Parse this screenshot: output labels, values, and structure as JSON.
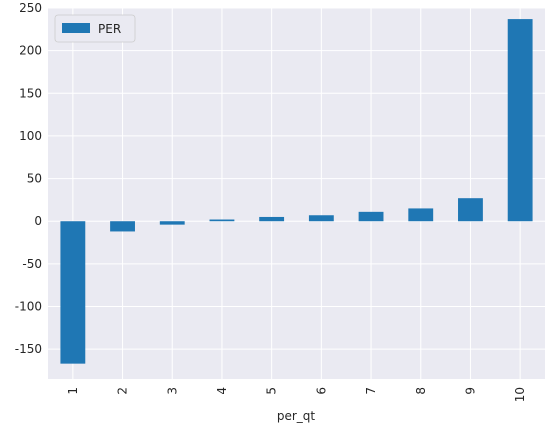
{
  "chart_data": {
    "type": "bar",
    "categories": [
      "1",
      "2",
      "3",
      "4",
      "5",
      "6",
      "7",
      "8",
      "9",
      "10"
    ],
    "series": [
      {
        "name": "PER",
        "values": [
          -167,
          -12,
          -4,
          2,
          5,
          7,
          11,
          15,
          27,
          237
        ]
      }
    ],
    "xlabel": "per_qt",
    "ylabel": "",
    "ylim": [
      -185,
      250
    ],
    "yticks": [
      -150,
      -100,
      -50,
      0,
      50,
      100,
      150,
      200,
      250
    ],
    "grid": true,
    "legend_position": "top-left",
    "colors": {
      "bar": "#1f77b4",
      "background": "#eaeaf2",
      "grid": "#ffffff"
    }
  }
}
